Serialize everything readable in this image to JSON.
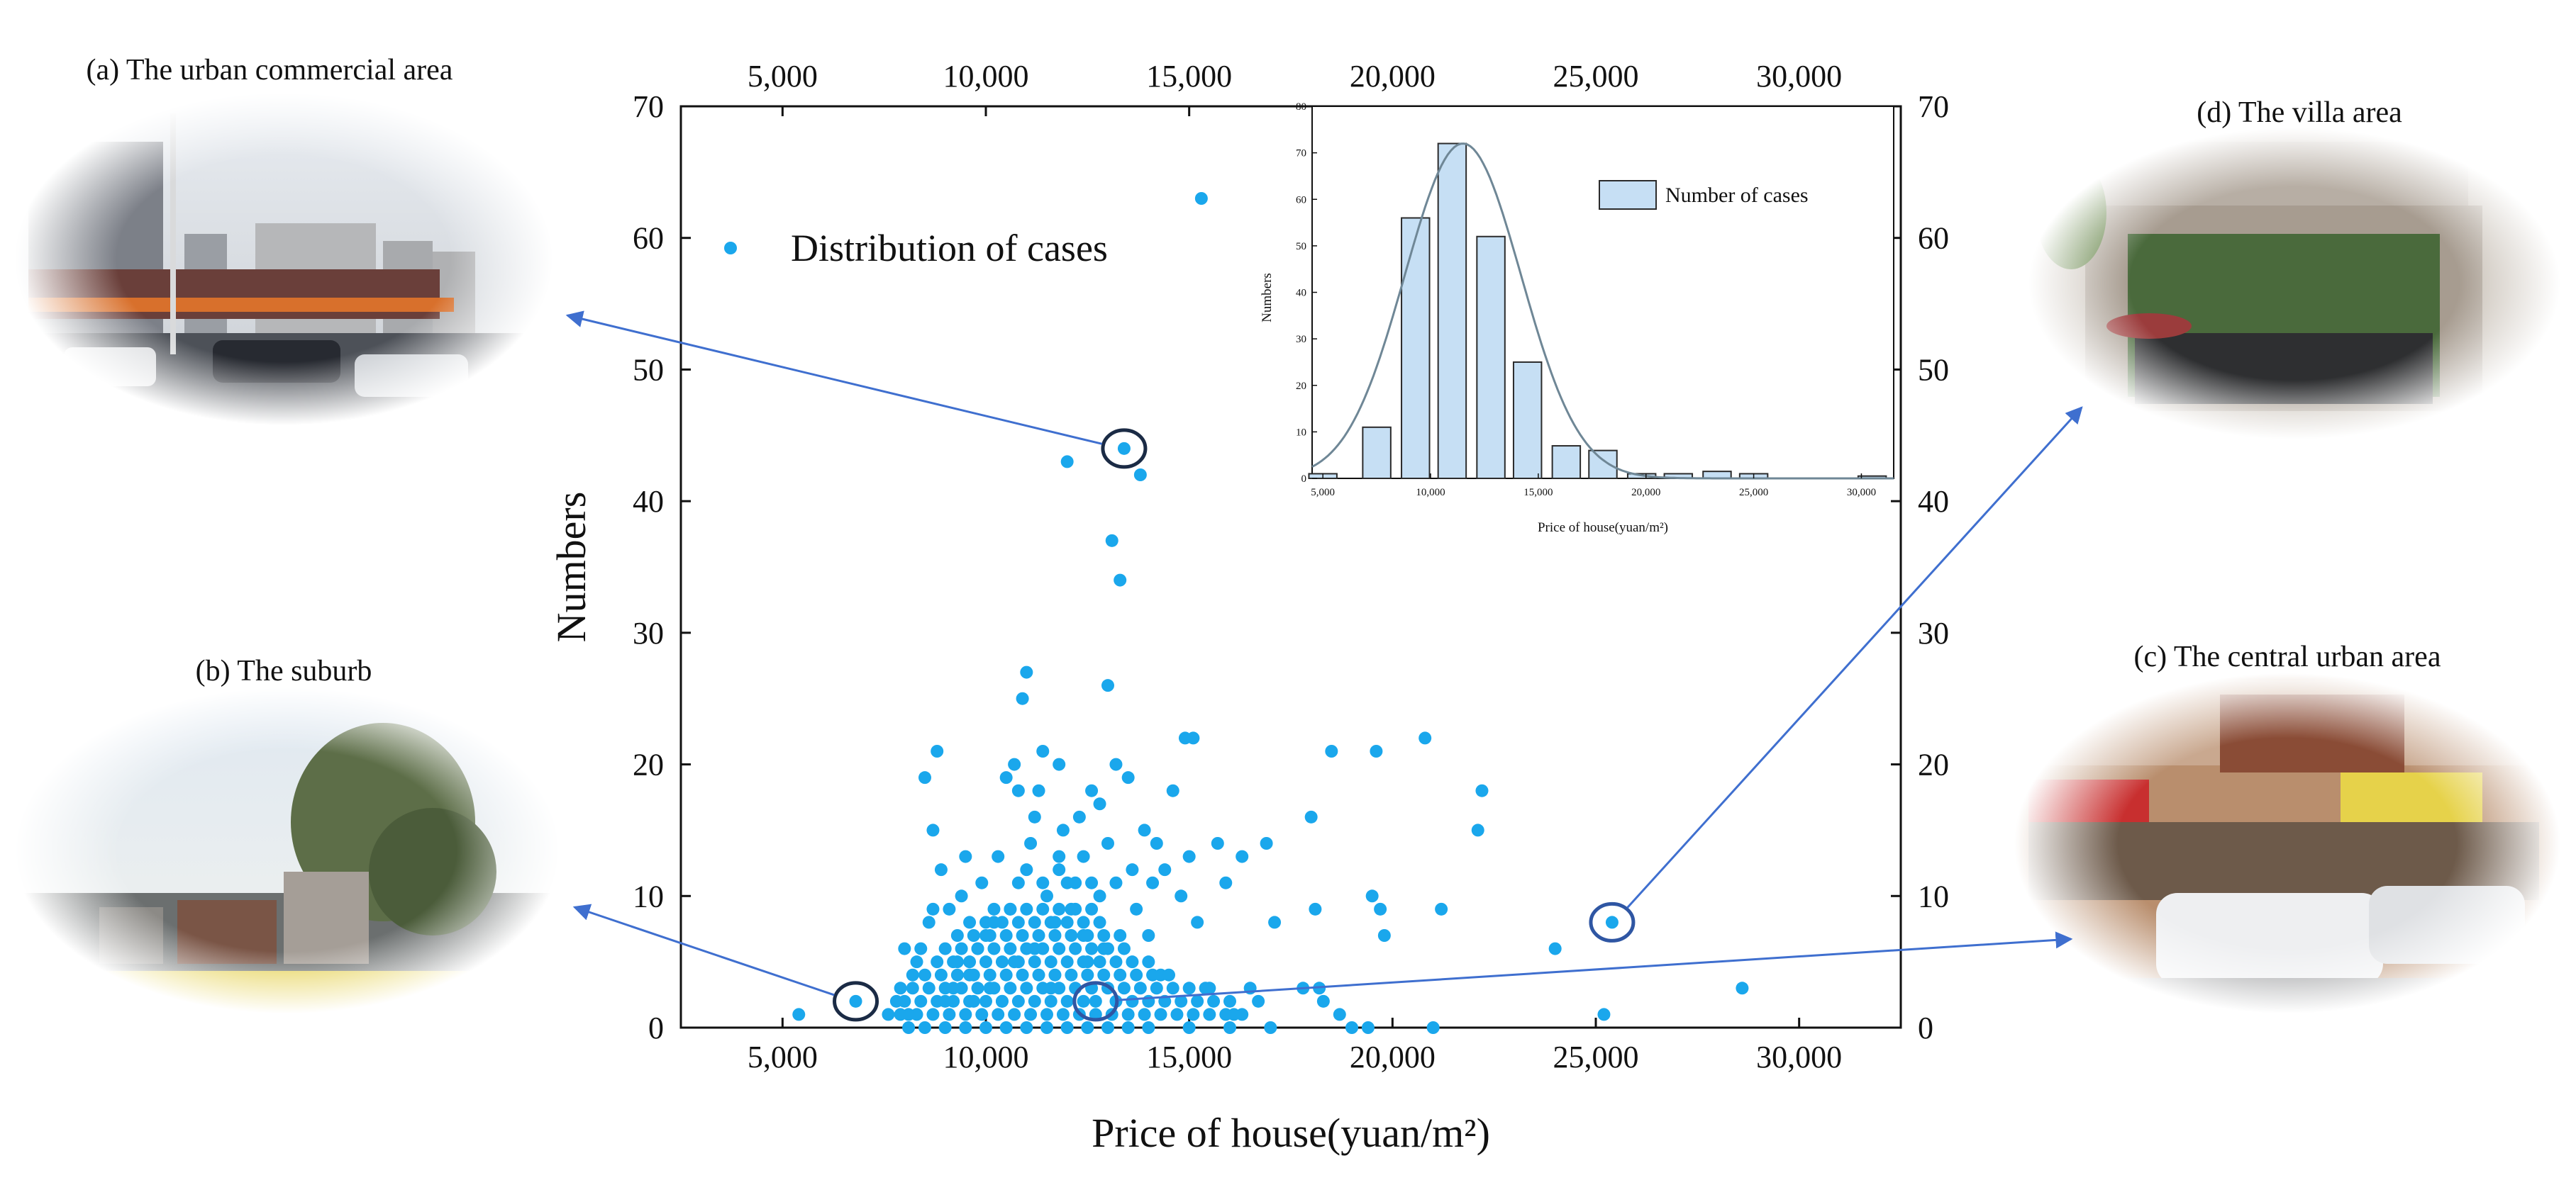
{
  "photos": [
    {
      "id": "a",
      "label": "(a) The urban commercial area"
    },
    {
      "id": "b",
      "label": "(b) The suburb"
    },
    {
      "id": "c",
      "label": "(c) The central urban area"
    },
    {
      "id": "d",
      "label": "(d) The villa area"
    }
  ],
  "chart_data": [
    {
      "type": "scatter",
      "xlabel": "Price of house(yuan/m²)",
      "ylabel": "Numbers",
      "xlim": [
        2500,
        32500
      ],
      "ylim": [
        0,
        70
      ],
      "xticks": [
        5000,
        10000,
        15000,
        20000,
        25000,
        30000
      ],
      "xtick_labels": [
        "5,000",
        "10,000",
        "15,000",
        "20,000",
        "25,000",
        "30,000"
      ],
      "yticks": [
        0,
        10,
        20,
        30,
        40,
        50,
        60,
        70
      ],
      "ytick_labels": [
        "0",
        "10",
        "20",
        "30",
        "40",
        "50",
        "60",
        "70"
      ],
      "legend": "Distribution of cases",
      "marker_color": "#1aa7ec",
      "highlights": [
        {
          "x": 13400,
          "y": 44,
          "photo": "a"
        },
        {
          "x": 6800,
          "y": 2,
          "photo": "b"
        },
        {
          "x": 12700,
          "y": 2,
          "photo": "c"
        },
        {
          "x": 25400,
          "y": 8,
          "photo": "d"
        }
      ],
      "points": [
        [
          5400,
          1
        ],
        [
          6800,
          2
        ],
        [
          7600,
          1
        ],
        [
          7800,
          2
        ],
        [
          7900,
          3
        ],
        [
          8000,
          6
        ],
        [
          8100,
          1
        ],
        [
          8200,
          4
        ],
        [
          8300,
          5
        ],
        [
          8400,
          6
        ],
        [
          8500,
          19
        ],
        [
          8600,
          8
        ],
        [
          8700,
          9
        ],
        [
          8800,
          21
        ],
        [
          8900,
          12
        ],
        [
          8700,
          15
        ],
        [
          9000,
          2
        ],
        [
          9100,
          9
        ],
        [
          9200,
          3
        ],
        [
          9300,
          5
        ],
        [
          9400,
          10
        ],
        [
          9500,
          13
        ],
        [
          9600,
          4
        ],
        [
          9700,
          2
        ],
        [
          9800,
          6
        ],
        [
          9900,
          11
        ],
        [
          10000,
          7
        ],
        [
          10100,
          3
        ],
        [
          10200,
          8
        ],
        [
          10300,
          13
        ],
        [
          10400,
          2
        ],
        [
          10500,
          19
        ],
        [
          10600,
          9
        ],
        [
          10700,
          5
        ],
        [
          10800,
          18
        ],
        [
          10900,
          25
        ],
        [
          11000,
          27
        ],
        [
          11100,
          14
        ],
        [
          11200,
          6
        ],
        [
          11300,
          18
        ],
        [
          11400,
          21
        ],
        [
          11500,
          10
        ],
        [
          11600,
          3
        ],
        [
          11700,
          8
        ],
        [
          11800,
          12
        ],
        [
          11900,
          15
        ],
        [
          12000,
          43
        ],
        [
          12100,
          9
        ],
        [
          12200,
          11
        ],
        [
          12300,
          16
        ],
        [
          12400,
          7
        ],
        [
          12500,
          5
        ],
        [
          12600,
          18
        ],
        [
          12700,
          2
        ],
        [
          12800,
          10
        ],
        [
          12900,
          6
        ],
        [
          13000,
          26
        ],
        [
          13100,
          37
        ],
        [
          13300,
          34
        ],
        [
          13400,
          44
        ],
        [
          13500,
          19
        ],
        [
          13600,
          12
        ],
        [
          13700,
          9
        ],
        [
          13800,
          42
        ],
        [
          13900,
          15
        ],
        [
          14000,
          7
        ],
        [
          14100,
          11
        ],
        [
          14200,
          14
        ],
        [
          14300,
          4
        ],
        [
          14400,
          12
        ],
        [
          14600,
          18
        ],
        [
          14800,
          10
        ],
        [
          14900,
          22
        ],
        [
          15000,
          13
        ],
        [
          15100,
          22
        ],
        [
          15200,
          8
        ],
        [
          15300,
          63
        ],
        [
          15500,
          3
        ],
        [
          15700,
          14
        ],
        [
          15900,
          11
        ],
        [
          16100,
          1
        ],
        [
          16300,
          13
        ],
        [
          16500,
          3
        ],
        [
          16700,
          2
        ],
        [
          16900,
          14
        ],
        [
          17100,
          8
        ],
        [
          17800,
          3
        ],
        [
          18000,
          16
        ],
        [
          18100,
          9
        ],
        [
          18200,
          3
        ],
        [
          18300,
          2
        ],
        [
          18500,
          21
        ],
        [
          18700,
          1
        ],
        [
          19000,
          0
        ],
        [
          19400,
          0
        ],
        [
          19500,
          10
        ],
        [
          19600,
          21
        ],
        [
          19700,
          9
        ],
        [
          19800,
          7
        ],
        [
          20800,
          22
        ],
        [
          21000,
          0
        ],
        [
          21200,
          9
        ],
        [
          22100,
          15
        ],
        [
          22200,
          18
        ],
        [
          24000,
          6
        ],
        [
          25200,
          1
        ],
        [
          25400,
          8
        ],
        [
          28600,
          3
        ],
        [
          8100,
          0
        ],
        [
          8500,
          0
        ],
        [
          9000,
          0
        ],
        [
          9500,
          0
        ],
        [
          10000,
          0
        ],
        [
          10500,
          0
        ],
        [
          11000,
          0
        ],
        [
          11500,
          0
        ],
        [
          12000,
          0
        ],
        [
          12500,
          0
        ],
        [
          13000,
          0
        ],
        [
          13500,
          0
        ],
        [
          14000,
          0
        ],
        [
          15000,
          0
        ],
        [
          16000,
          0
        ],
        [
          17000,
          0
        ],
        [
          7900,
          1
        ],
        [
          8300,
          1
        ],
        [
          8700,
          1
        ],
        [
          9100,
          1
        ],
        [
          9500,
          1
        ],
        [
          9900,
          1
        ],
        [
          10300,
          1
        ],
        [
          10700,
          1
        ],
        [
          11100,
          1
        ],
        [
          11500,
          1
        ],
        [
          11900,
          1
        ],
        [
          12300,
          1
        ],
        [
          12700,
          1
        ],
        [
          13100,
          1
        ],
        [
          13500,
          1
        ],
        [
          13900,
          1
        ],
        [
          14300,
          1
        ],
        [
          14700,
          1
        ],
        [
          15100,
          1
        ],
        [
          15500,
          1
        ],
        [
          15900,
          1
        ],
        [
          16300,
          1
        ],
        [
          8000,
          2
        ],
        [
          8400,
          2
        ],
        [
          8800,
          2
        ],
        [
          9200,
          2
        ],
        [
          9600,
          2
        ],
        [
          10000,
          2
        ],
        [
          10400,
          2
        ],
        [
          10800,
          2
        ],
        [
          11200,
          2
        ],
        [
          11600,
          2
        ],
        [
          12000,
          2
        ],
        [
          12400,
          2
        ],
        [
          13200,
          2
        ],
        [
          13600,
          2
        ],
        [
          14000,
          2
        ],
        [
          14400,
          2
        ],
        [
          14800,
          2
        ],
        [
          15200,
          2
        ],
        [
          15600,
          2
        ],
        [
          16000,
          2
        ],
        [
          8200,
          3
        ],
        [
          8600,
          3
        ],
        [
          9000,
          3
        ],
        [
          9400,
          3
        ],
        [
          9800,
          3
        ],
        [
          10200,
          3
        ],
        [
          10600,
          3
        ],
        [
          11000,
          3
        ],
        [
          11400,
          3
        ],
        [
          11800,
          3
        ],
        [
          12200,
          3
        ],
        [
          12600,
          3
        ],
        [
          13000,
          3
        ],
        [
          13400,
          3
        ],
        [
          13800,
          3
        ],
        [
          14200,
          3
        ],
        [
          14600,
          3
        ],
        [
          15000,
          3
        ],
        [
          15400,
          3
        ],
        [
          8500,
          4
        ],
        [
          8900,
          4
        ],
        [
          9300,
          4
        ],
        [
          9700,
          4
        ],
        [
          10100,
          4
        ],
        [
          10500,
          4
        ],
        [
          10900,
          4
        ],
        [
          11300,
          4
        ],
        [
          11700,
          4
        ],
        [
          12100,
          4
        ],
        [
          12500,
          4
        ],
        [
          12900,
          4
        ],
        [
          13300,
          4
        ],
        [
          13700,
          4
        ],
        [
          14100,
          4
        ],
        [
          14500,
          4
        ],
        [
          8800,
          5
        ],
        [
          9200,
          5
        ],
        [
          9600,
          5
        ],
        [
          10000,
          5
        ],
        [
          10400,
          5
        ],
        [
          10800,
          5
        ],
        [
          11200,
          5
        ],
        [
          11600,
          5
        ],
        [
          12000,
          5
        ],
        [
          12400,
          5
        ],
        [
          12800,
          5
        ],
        [
          13200,
          5
        ],
        [
          13600,
          5
        ],
        [
          14000,
          5
        ],
        [
          9000,
          6
        ],
        [
          9400,
          6
        ],
        [
          9800,
          6
        ],
        [
          10200,
          6
        ],
        [
          10600,
          6
        ],
        [
          11000,
          6
        ],
        [
          11400,
          6
        ],
        [
          11800,
          6
        ],
        [
          12200,
          6
        ],
        [
          12600,
          6
        ],
        [
          13000,
          6
        ],
        [
          13400,
          6
        ],
        [
          9300,
          7
        ],
        [
          9700,
          7
        ],
        [
          10100,
          7
        ],
        [
          10500,
          7
        ],
        [
          10900,
          7
        ],
        [
          11300,
          7
        ],
        [
          11700,
          7
        ],
        [
          12100,
          7
        ],
        [
          12500,
          7
        ],
        [
          12900,
          7
        ],
        [
          13300,
          7
        ],
        [
          9600,
          8
        ],
        [
          10000,
          8
        ],
        [
          10400,
          8
        ],
        [
          10800,
          8
        ],
        [
          11200,
          8
        ],
        [
          11600,
          8
        ],
        [
          12000,
          8
        ],
        [
          12400,
          8
        ],
        [
          12800,
          8
        ],
        [
          10200,
          9
        ],
        [
          10600,
          9
        ],
        [
          11000,
          9
        ],
        [
          11400,
          9
        ],
        [
          11800,
          9
        ],
        [
          12200,
          9
        ],
        [
          12600,
          9
        ],
        [
          10800,
          11
        ],
        [
          11400,
          11
        ],
        [
          12000,
          11
        ],
        [
          12600,
          11
        ],
        [
          13200,
          11
        ],
        [
          11000,
          12
        ],
        [
          11800,
          13
        ],
        [
          12400,
          13
        ],
        [
          13000,
          14
        ],
        [
          11200,
          16
        ],
        [
          12800,
          17
        ],
        [
          13200,
          20
        ],
        [
          10700,
          20
        ],
        [
          11800,
          20
        ]
      ]
    },
    {
      "type": "histogram",
      "xlabel": "Price of house(yuan/m²)",
      "ylabel": "Numbers",
      "legend": "Number of cases",
      "bar_color": "#c6dff4",
      "bar_edge": "#2b2b2b",
      "curve_color": "#6f8796",
      "xlim": [
        4500,
        31500
      ],
      "ylim": [
        0,
        80
      ],
      "xticks": [
        5000,
        10000,
        15000,
        20000,
        25000,
        30000
      ],
      "xtick_labels": [
        "5,000",
        "10,000",
        "15,000",
        "20,000",
        "25,000",
        "30,000"
      ],
      "yticks": [
        0,
        10,
        20,
        30,
        40,
        50,
        60,
        70,
        80
      ],
      "ytick_labels": [
        "0",
        "10",
        "20",
        "30",
        "40",
        "50",
        "60",
        "70",
        "80"
      ],
      "bins": [
        {
          "center": 5000,
          "value": 1
        },
        {
          "center": 7500,
          "value": 11
        },
        {
          "center": 9300,
          "value": 56
        },
        {
          "center": 11000,
          "value": 72
        },
        {
          "center": 12800,
          "value": 52
        },
        {
          "center": 14500,
          "value": 25
        },
        {
          "center": 16300,
          "value": 7
        },
        {
          "center": 18000,
          "value": 6
        },
        {
          "center": 19800,
          "value": 1
        },
        {
          "center": 21500,
          "value": 1
        },
        {
          "center": 23300,
          "value": 1.5
        },
        {
          "center": 25000,
          "value": 1
        },
        {
          "center": 30500,
          "value": 0.5
        }
      ],
      "bin_width": 1300,
      "normal_curve": {
        "mean": 11500,
        "sd": 2700,
        "peak": 72
      }
    }
  ]
}
